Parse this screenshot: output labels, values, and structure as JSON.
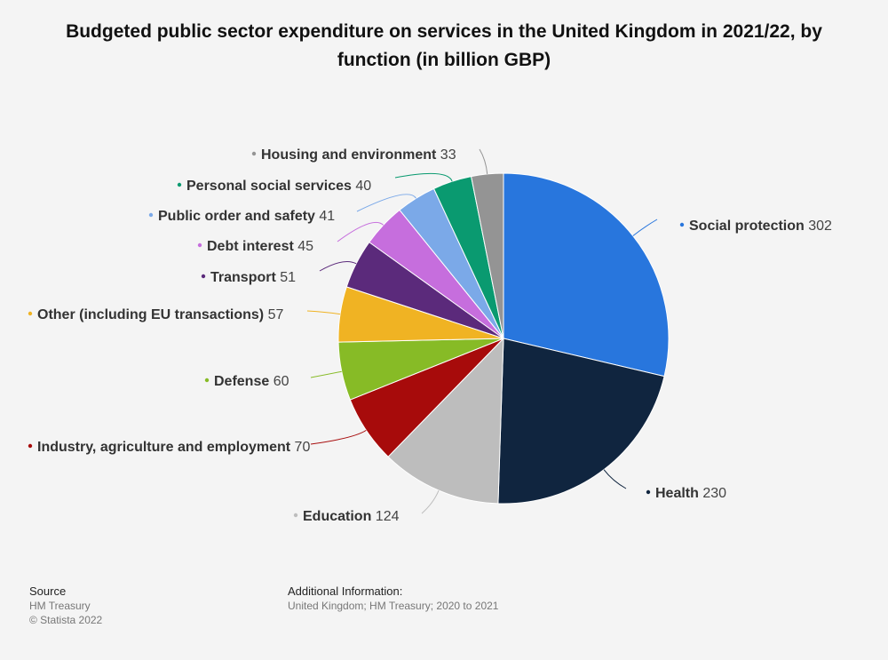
{
  "title_text": "Budgeted public sector expenditure on services in the United Kingdom in 2021/22, by function (in billion GBP)",
  "chart_data": {
    "type": "pie",
    "title": "Budgeted public sector expenditure on services in the United Kingdom in 2021/22, by function (in billion GBP)",
    "slices": [
      {
        "label": "Social protection",
        "value": 302,
        "color": "#2876dd"
      },
      {
        "label": "Health",
        "value": 230,
        "color": "#10253f"
      },
      {
        "label": "Education",
        "value": 124,
        "color": "#bdbdbd"
      },
      {
        "label": "Industry, agriculture and employment",
        "value": 70,
        "color": "#a70b0b"
      },
      {
        "label": "Defense",
        "value": 60,
        "color": "#87bb26"
      },
      {
        "label": "Other (including EU transactions)",
        "value": 57,
        "color": "#f0b323"
      },
      {
        "label": "Transport",
        "value": 51,
        "color": "#5b2a7b"
      },
      {
        "label": "Debt interest",
        "value": 45,
        "color": "#c66edd"
      },
      {
        "label": "Public order and safety",
        "value": 41,
        "color": "#7ba9e8"
      },
      {
        "label": "Personal social services",
        "value": 40,
        "color": "#0a9a70"
      },
      {
        "label": "Housing and environment",
        "value": 33,
        "color": "#949494"
      }
    ]
  },
  "footer": {
    "source_heading": "Source",
    "source_line1": "HM Treasury",
    "source_line2": "© Statista 2022",
    "info_heading": "Additional Information:",
    "info_text": "United Kingdom; HM Treasury; 2020 to 2021"
  }
}
